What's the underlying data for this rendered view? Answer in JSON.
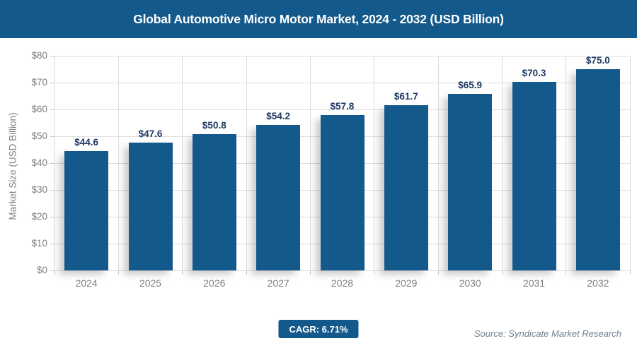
{
  "header": {
    "title": "Global Automotive Micro Motor Market, 2024 - 2032 (USD Billion)"
  },
  "chart_data": {
    "type": "bar",
    "title": "Global Automotive Micro Motor Market, 2024 - 2032 (USD Billion)",
    "categories": [
      "2024",
      "2025",
      "2026",
      "2027",
      "2028",
      "2029",
      "2030",
      "2031",
      "2032"
    ],
    "values": [
      44.6,
      47.6,
      50.8,
      54.2,
      57.8,
      61.7,
      65.9,
      70.3,
      75.0
    ],
    "value_labels": [
      "$44.6",
      "$47.6",
      "$50.8",
      "$54.2",
      "$57.8",
      "$61.7",
      "$65.9",
      "$70.3",
      "$75.0"
    ],
    "xlabel": "",
    "ylabel": "Market Size (USD Billion)",
    "ylim": [
      0,
      80
    ],
    "y_tick_step": 10,
    "y_tick_labels": [
      "$0",
      "$10",
      "$20",
      "$30",
      "$40",
      "$50",
      "$60",
      "$70",
      "$80"
    ],
    "grid": "horizontal and vertical light gray",
    "legend": "none"
  },
  "footer": {
    "cagr_label": "CAGR: 6.71%",
    "source": "Source: Syndicate Market Research"
  },
  "colors": {
    "primary_blue": "#14598c",
    "value_label_navy": "#1f3864",
    "axis_text_gray": "#7f7f7f",
    "gridline_gray": "#dcdcdc",
    "source_gray_blue": "#70808f"
  }
}
